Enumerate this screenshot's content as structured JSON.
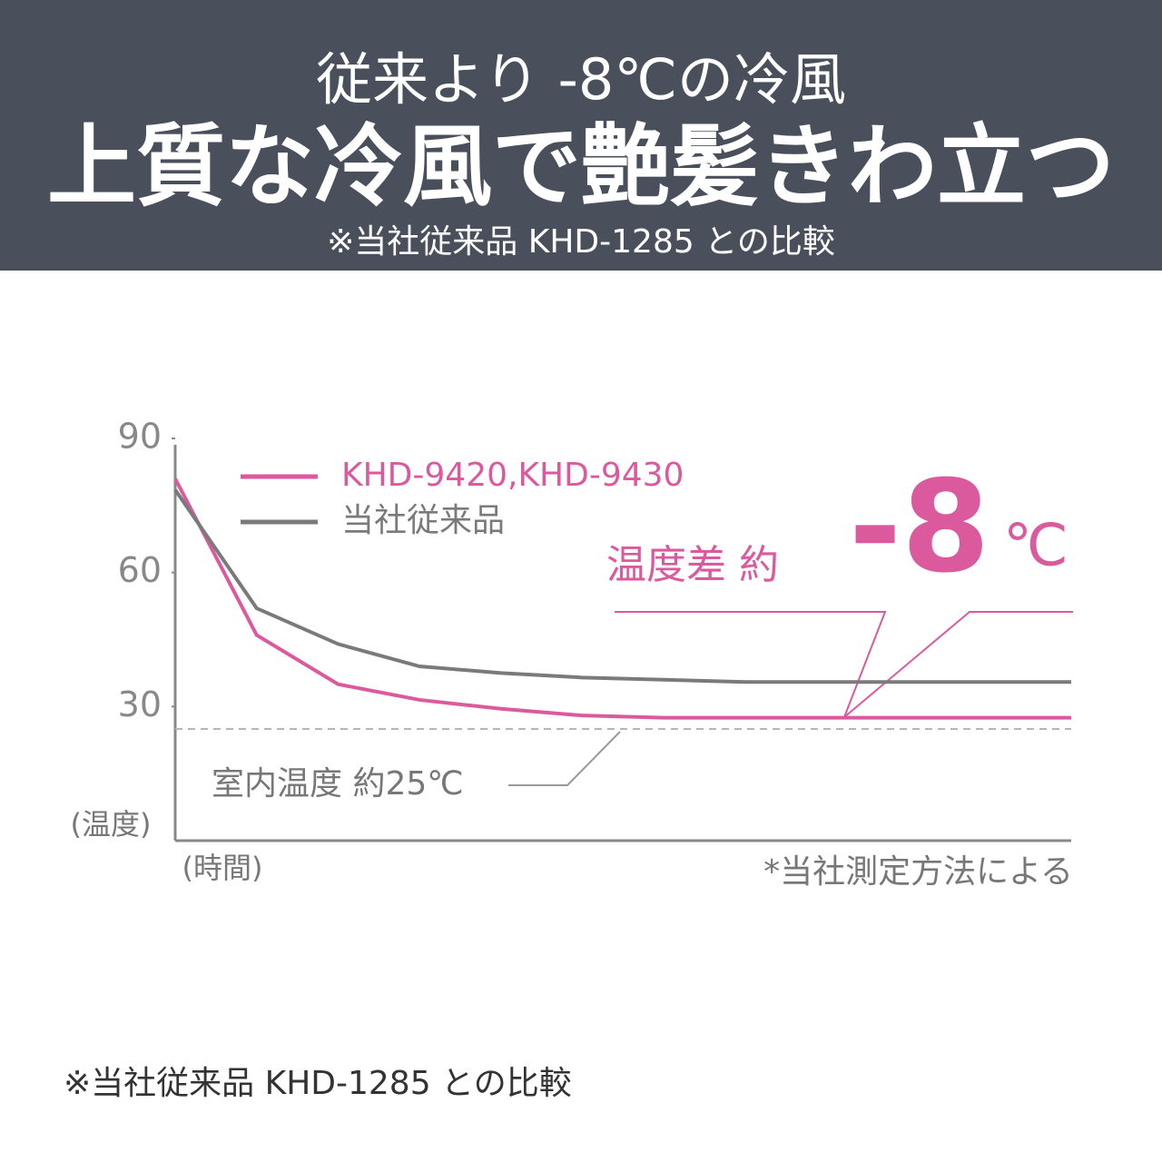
{
  "header": {
    "line1": "従来より -8℃の冷風",
    "title": "上質な冷風で艶髪きわ立つ",
    "note": "※当社従来品 KHD-1285 との比較"
  },
  "chart_data": {
    "type": "line",
    "x": [
      0,
      1,
      2,
      3,
      4,
      5,
      6,
      7,
      11
    ],
    "xlim": [
      0,
      11
    ],
    "ylim": [
      0,
      90
    ],
    "yticks": [
      30,
      60,
      90
    ],
    "y_label": "(温度)",
    "x_label": "(時間)",
    "series": [
      {
        "name": "KHD-9420,KHD-9430",
        "color": "#db5a9d",
        "values": [
          81,
          46,
          35,
          31.5,
          29.5,
          28,
          27.5,
          27.5,
          27.5
        ]
      },
      {
        "name": "当社従来品",
        "color": "#7a7a7a",
        "values": [
          78.5,
          52,
          44,
          39,
          37.5,
          36.5,
          36,
          35.5,
          35.5
        ]
      }
    ],
    "reference_line": {
      "value": 25,
      "label": "室内温度 約25℃",
      "color": "#b5b5b5"
    },
    "annotations": {
      "difference": "温度差 約",
      "difference_value": "-8",
      "difference_unit": "℃"
    },
    "source_note": "*当社測定方法による"
  },
  "footer": "※当社従来品 KHD-1285 との比較"
}
